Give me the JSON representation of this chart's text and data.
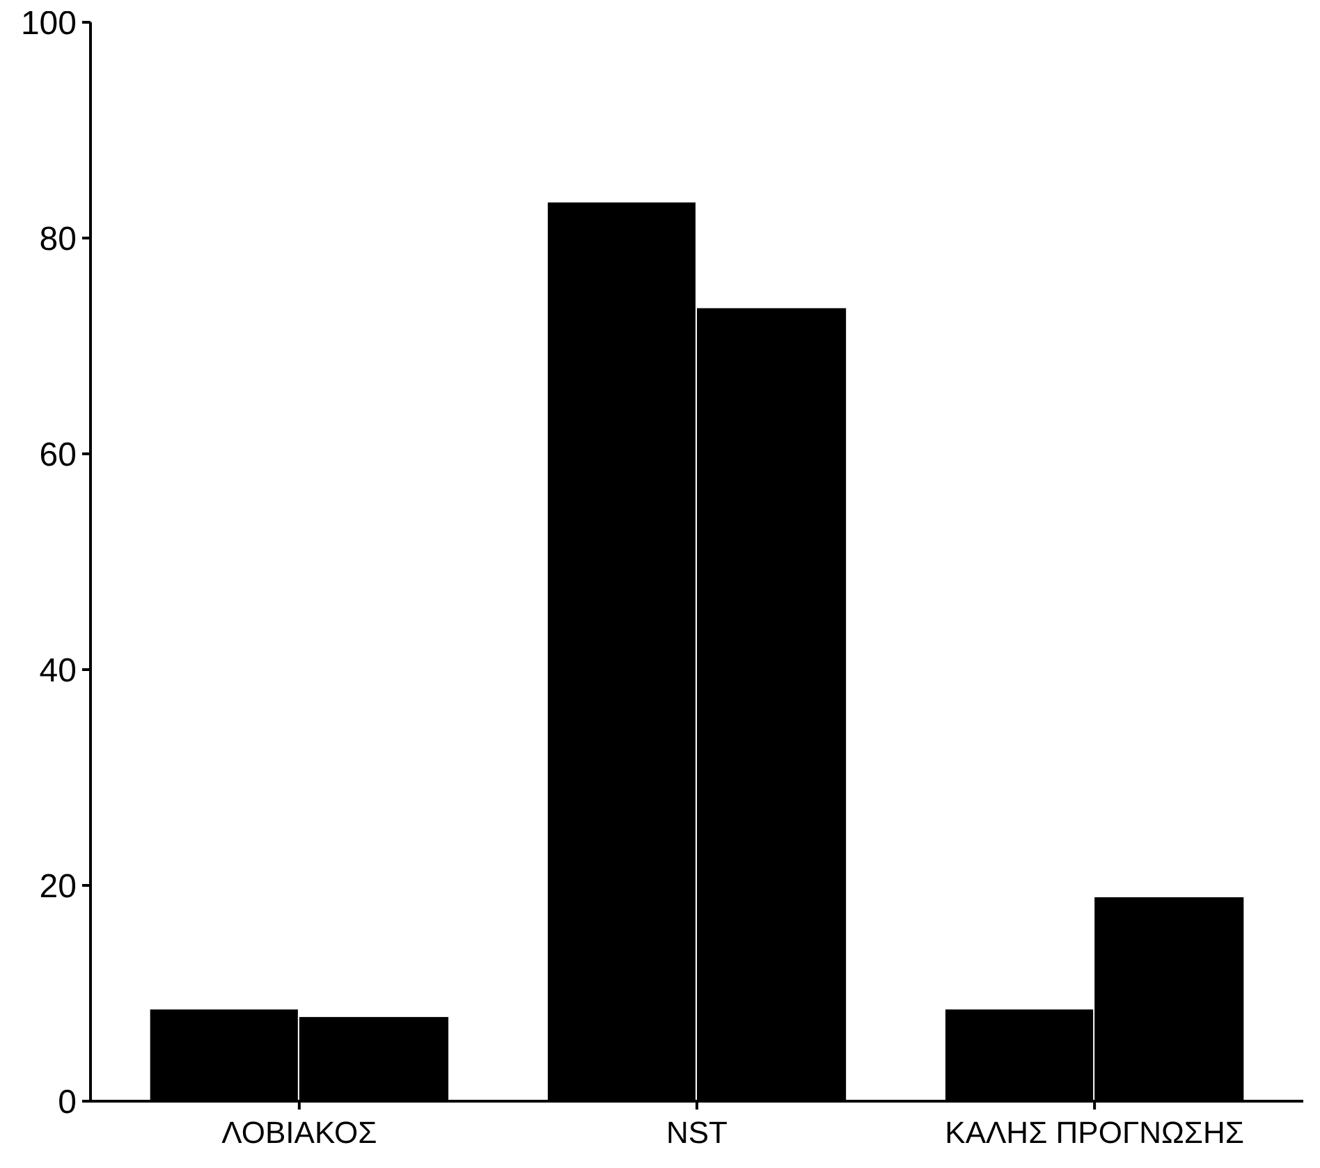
{
  "chart_data": {
    "type": "bar",
    "categories": [
      "ΛΟΒΙΑΚΟΣ",
      "NST",
      "ΚΑΛΗΣ ΠΡΟΓΝΩΣΗΣ"
    ],
    "series": [
      {
        "color": "#000000",
        "values": [
          8.5,
          83.3,
          8.5
        ]
      },
      {
        "color": "#000000",
        "values": [
          7.8,
          73.5,
          18.9
        ]
      }
    ],
    "ylim": [
      0,
      100
    ],
    "yticks": [
      0,
      20,
      40,
      60,
      80,
      100
    ]
  }
}
